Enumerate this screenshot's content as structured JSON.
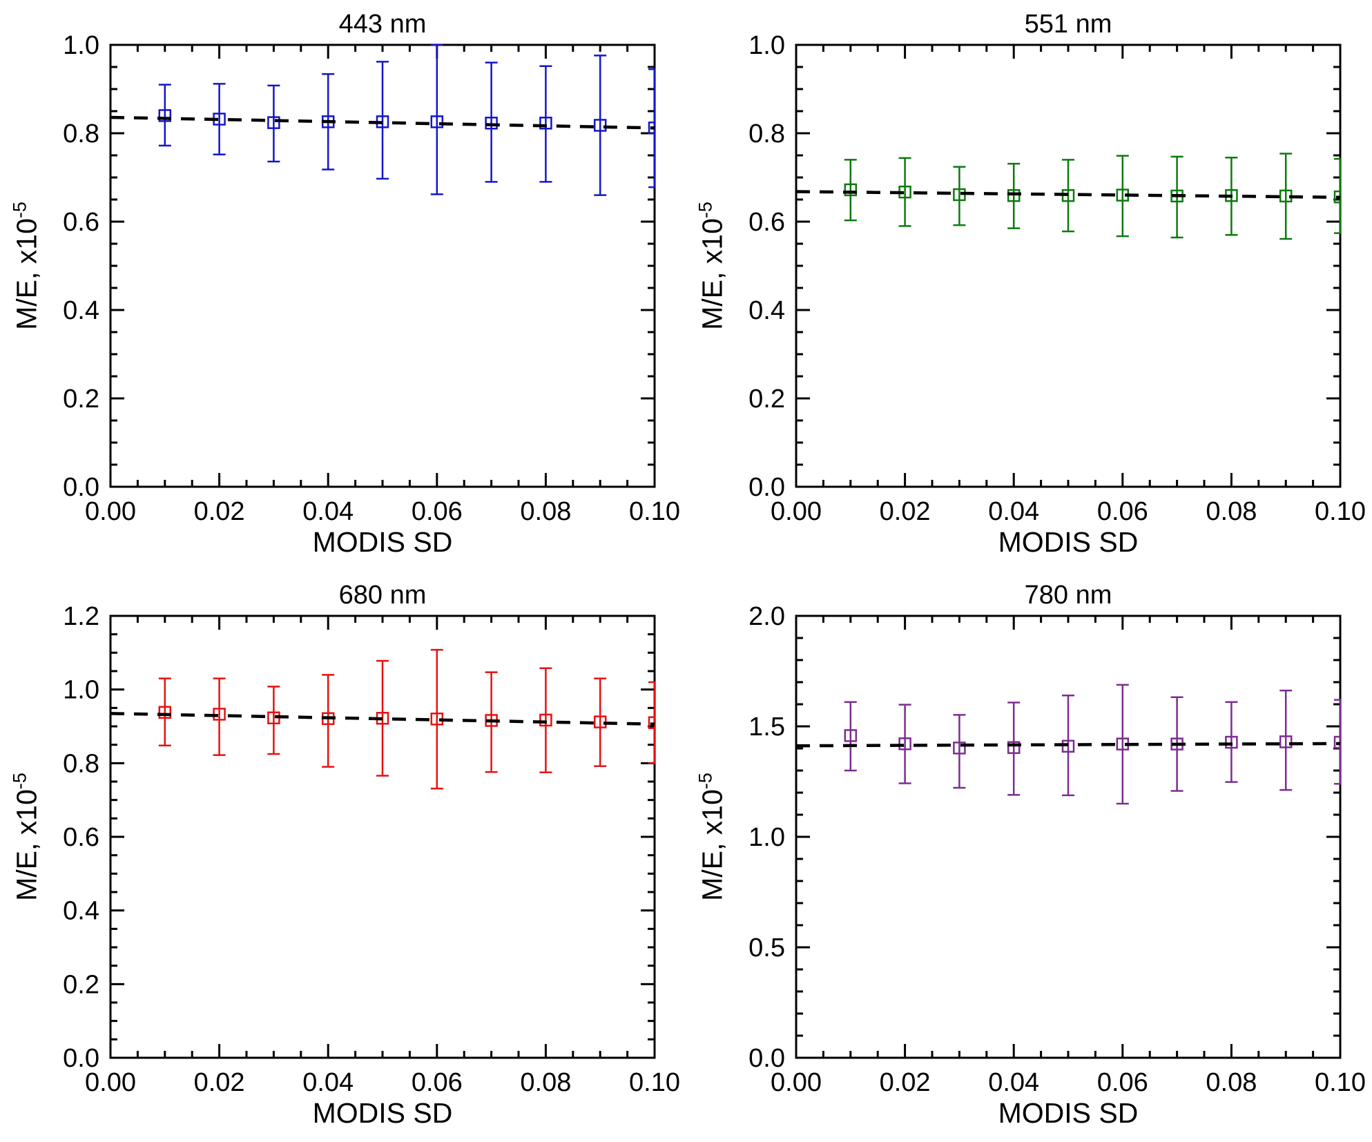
{
  "page": {
    "background": "#ffffff"
  },
  "chart_data": [
    {
      "type": "scatter",
      "title": "443 nm",
      "xlabel": "MODIS SD",
      "ylabel": "M/E, x10",
      "ylabel_superscript": "-5",
      "color": "#1414cc",
      "axis_color": "#000000",
      "trend_color": "#000000",
      "xlim": [
        0.0,
        0.1
      ],
      "ylim": [
        0.0,
        1.0
      ],
      "x_ticks": [
        0.0,
        0.02,
        0.04,
        0.06,
        0.08,
        0.1
      ],
      "x_tick_labels": [
        "0.00",
        "0.02",
        "0.04",
        "0.06",
        "0.08",
        "0.10"
      ],
      "y_ticks": [
        0.0,
        0.2,
        0.4,
        0.6,
        0.8,
        1.0
      ],
      "y_tick_labels": [
        "0.0",
        "0.2",
        "0.4",
        "0.6",
        "0.8",
        "1.0"
      ],
      "x_minor_step": 0.005,
      "y_minor_step": 0.05,
      "x": [
        0.01,
        0.02,
        0.03,
        0.04,
        0.05,
        0.06,
        0.07,
        0.08,
        0.09,
        0.1
      ],
      "y": [
        0.84,
        0.832,
        0.824,
        0.826,
        0.826,
        0.826,
        0.823,
        0.823,
        0.818,
        0.812
      ],
      "y_upper": [
        0.91,
        0.912,
        0.908,
        0.934,
        0.962,
        1.0,
        0.96,
        0.952,
        0.976,
        0.945
      ],
      "y_lower": [
        0.772,
        0.752,
        0.736,
        0.718,
        0.697,
        0.662,
        0.69,
        0.69,
        0.66,
        0.678
      ],
      "trend_line": {
        "y_at_xmin": 0.836,
        "y_at_xmax": 0.812
      }
    },
    {
      "type": "scatter",
      "title": "551 nm",
      "xlabel": "MODIS SD",
      "ylabel": "M/E, x10",
      "ylabel_superscript": "-5",
      "color": "#0b7a0b",
      "axis_color": "#000000",
      "trend_color": "#000000",
      "xlim": [
        0.0,
        0.1
      ],
      "ylim": [
        0.0,
        1.0
      ],
      "x_ticks": [
        0.0,
        0.02,
        0.04,
        0.06,
        0.08,
        0.1
      ],
      "x_tick_labels": [
        "0.00",
        "0.02",
        "0.04",
        "0.06",
        "0.08",
        "0.10"
      ],
      "y_ticks": [
        0.0,
        0.2,
        0.4,
        0.6,
        0.8,
        1.0
      ],
      "y_tick_labels": [
        "0.0",
        "0.2",
        "0.4",
        "0.6",
        "0.8",
        "1.0"
      ],
      "x_minor_step": 0.005,
      "y_minor_step": 0.05,
      "x": [
        0.01,
        0.02,
        0.03,
        0.04,
        0.05,
        0.06,
        0.07,
        0.08,
        0.09,
        0.1
      ],
      "y": [
        0.672,
        0.667,
        0.661,
        0.659,
        0.659,
        0.66,
        0.658,
        0.659,
        0.658,
        0.656
      ],
      "y_upper": [
        0.74,
        0.744,
        0.724,
        0.731,
        0.74,
        0.749,
        0.747,
        0.745,
        0.754,
        0.742
      ],
      "y_lower": [
        0.603,
        0.59,
        0.592,
        0.585,
        0.578,
        0.567,
        0.564,
        0.57,
        0.561,
        0.574
      ],
      "trend_line": {
        "y_at_xmin": 0.668,
        "y_at_xmax": 0.655
      }
    },
    {
      "type": "scatter",
      "title": "680 nm",
      "xlabel": "MODIS SD",
      "ylabel": "M/E, x10",
      "ylabel_superscript": "-5",
      "color": "#e61010",
      "axis_color": "#000000",
      "trend_color": "#000000",
      "xlim": [
        0.0,
        0.1
      ],
      "ylim": [
        0.0,
        1.2
      ],
      "x_ticks": [
        0.0,
        0.02,
        0.04,
        0.06,
        0.08,
        0.1
      ],
      "x_tick_labels": [
        "0.00",
        "0.02",
        "0.04",
        "0.06",
        "0.08",
        "0.10"
      ],
      "y_ticks": [
        0.0,
        0.2,
        0.4,
        0.6,
        0.8,
        1.0,
        1.2
      ],
      "y_tick_labels": [
        "0.0",
        "0.2",
        "0.4",
        "0.6",
        "0.8",
        "1.0",
        "1.2"
      ],
      "x_minor_step": 0.005,
      "y_minor_step": 0.05,
      "x": [
        0.01,
        0.02,
        0.03,
        0.04,
        0.05,
        0.06,
        0.07,
        0.08,
        0.09,
        0.1
      ],
      "y": [
        0.938,
        0.933,
        0.923,
        0.921,
        0.922,
        0.92,
        0.916,
        0.917,
        0.912,
        0.91
      ],
      "y_upper": [
        1.03,
        1.03,
        1.008,
        1.04,
        1.078,
        1.108,
        1.047,
        1.058,
        1.03,
        1.02
      ],
      "y_lower": [
        0.848,
        0.822,
        0.825,
        0.79,
        0.766,
        0.731,
        0.776,
        0.775,
        0.792,
        0.8
      ],
      "trend_line": {
        "y_at_xmin": 0.935,
        "y_at_xmax": 0.906
      }
    },
    {
      "type": "scatter",
      "title": "780 nm",
      "xlabel": "MODIS SD",
      "ylabel": "M/E, x10",
      "ylabel_superscript": "-5",
      "color": "#7b2d90",
      "axis_color": "#000000",
      "trend_color": "#000000",
      "xlim": [
        0.0,
        0.1
      ],
      "ylim": [
        0.0,
        2.0
      ],
      "x_ticks": [
        0.0,
        0.02,
        0.04,
        0.06,
        0.08,
        0.1
      ],
      "x_tick_labels": [
        "0.00",
        "0.02",
        "0.04",
        "0.06",
        "0.08",
        "0.10"
      ],
      "y_ticks": [
        0.0,
        0.5,
        1.0,
        1.5,
        2.0
      ],
      "y_tick_labels": [
        "0.0",
        "0.5",
        "1.0",
        "1.5",
        "2.0"
      ],
      "x_minor_step": 0.005,
      "y_minor_step": 0.1,
      "x": [
        0.01,
        0.02,
        0.03,
        0.04,
        0.05,
        0.06,
        0.07,
        0.08,
        0.09,
        0.1
      ],
      "y": [
        1.458,
        1.421,
        1.402,
        1.404,
        1.41,
        1.42,
        1.42,
        1.428,
        1.43,
        1.428
      ],
      "y_upper": [
        1.61,
        1.598,
        1.552,
        1.608,
        1.64,
        1.688,
        1.632,
        1.61,
        1.662,
        1.62
      ],
      "y_lower": [
        1.3,
        1.242,
        1.222,
        1.19,
        1.188,
        1.15,
        1.208,
        1.248,
        1.212,
        1.24
      ],
      "trend_line": {
        "y_at_xmin": 1.412,
        "y_at_xmax": 1.422
      }
    }
  ]
}
